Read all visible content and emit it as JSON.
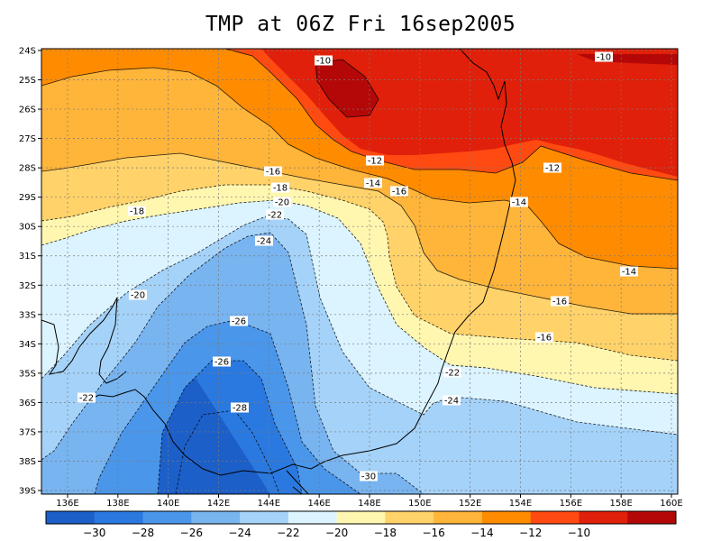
{
  "title": "TMP at 06Z Fri 16sep2005",
  "axes": {
    "lat_labels": [
      "24S",
      "25S",
      "26S",
      "27S",
      "28S",
      "29S",
      "30S",
      "31S",
      "32S",
      "33S",
      "34S",
      "35S",
      "36S",
      "37S",
      "38S",
      "39S"
    ],
    "lon_labels": [
      "136E",
      "138E",
      "140E",
      "142E",
      "144E",
      "146E",
      "148E",
      "150E",
      "152E",
      "154E",
      "156E",
      "158E",
      "160E"
    ]
  },
  "colorbar": {
    "labels": [
      "-30",
      "-28",
      "-26",
      "-24",
      "-22",
      "-20",
      "-18",
      "-16",
      "-14",
      "-12",
      "-10"
    ],
    "colors": [
      "#1c5fc8",
      "#2a79e0",
      "#4a96ea",
      "#78b4f0",
      "#a5d2f8",
      "#dcf4ff",
      "#fff6b0",
      "#ffd26a",
      "#ffb43a",
      "#ff8c00",
      "#ff4a12",
      "#e0200a",
      "#b40808"
    ]
  },
  "contour_labels": [
    {
      "text": "-10"
    },
    {
      "text": "-10"
    },
    {
      "text": "-12"
    },
    {
      "text": "-12"
    },
    {
      "text": "-14"
    },
    {
      "text": "-14"
    },
    {
      "text": "-14"
    },
    {
      "text": "-16"
    },
    {
      "text": "-16"
    },
    {
      "text": "-16"
    },
    {
      "text": "-16"
    },
    {
      "text": "-18"
    },
    {
      "text": "-18"
    },
    {
      "text": "-20"
    },
    {
      "text": "-20"
    },
    {
      "text": "-22"
    },
    {
      "text": "-22"
    },
    {
      "text": "-22"
    },
    {
      "text": "-24"
    },
    {
      "text": "-24"
    },
    {
      "text": "-26"
    },
    {
      "text": "-26"
    },
    {
      "text": "-28"
    },
    {
      "text": "-30"
    }
  ]
}
